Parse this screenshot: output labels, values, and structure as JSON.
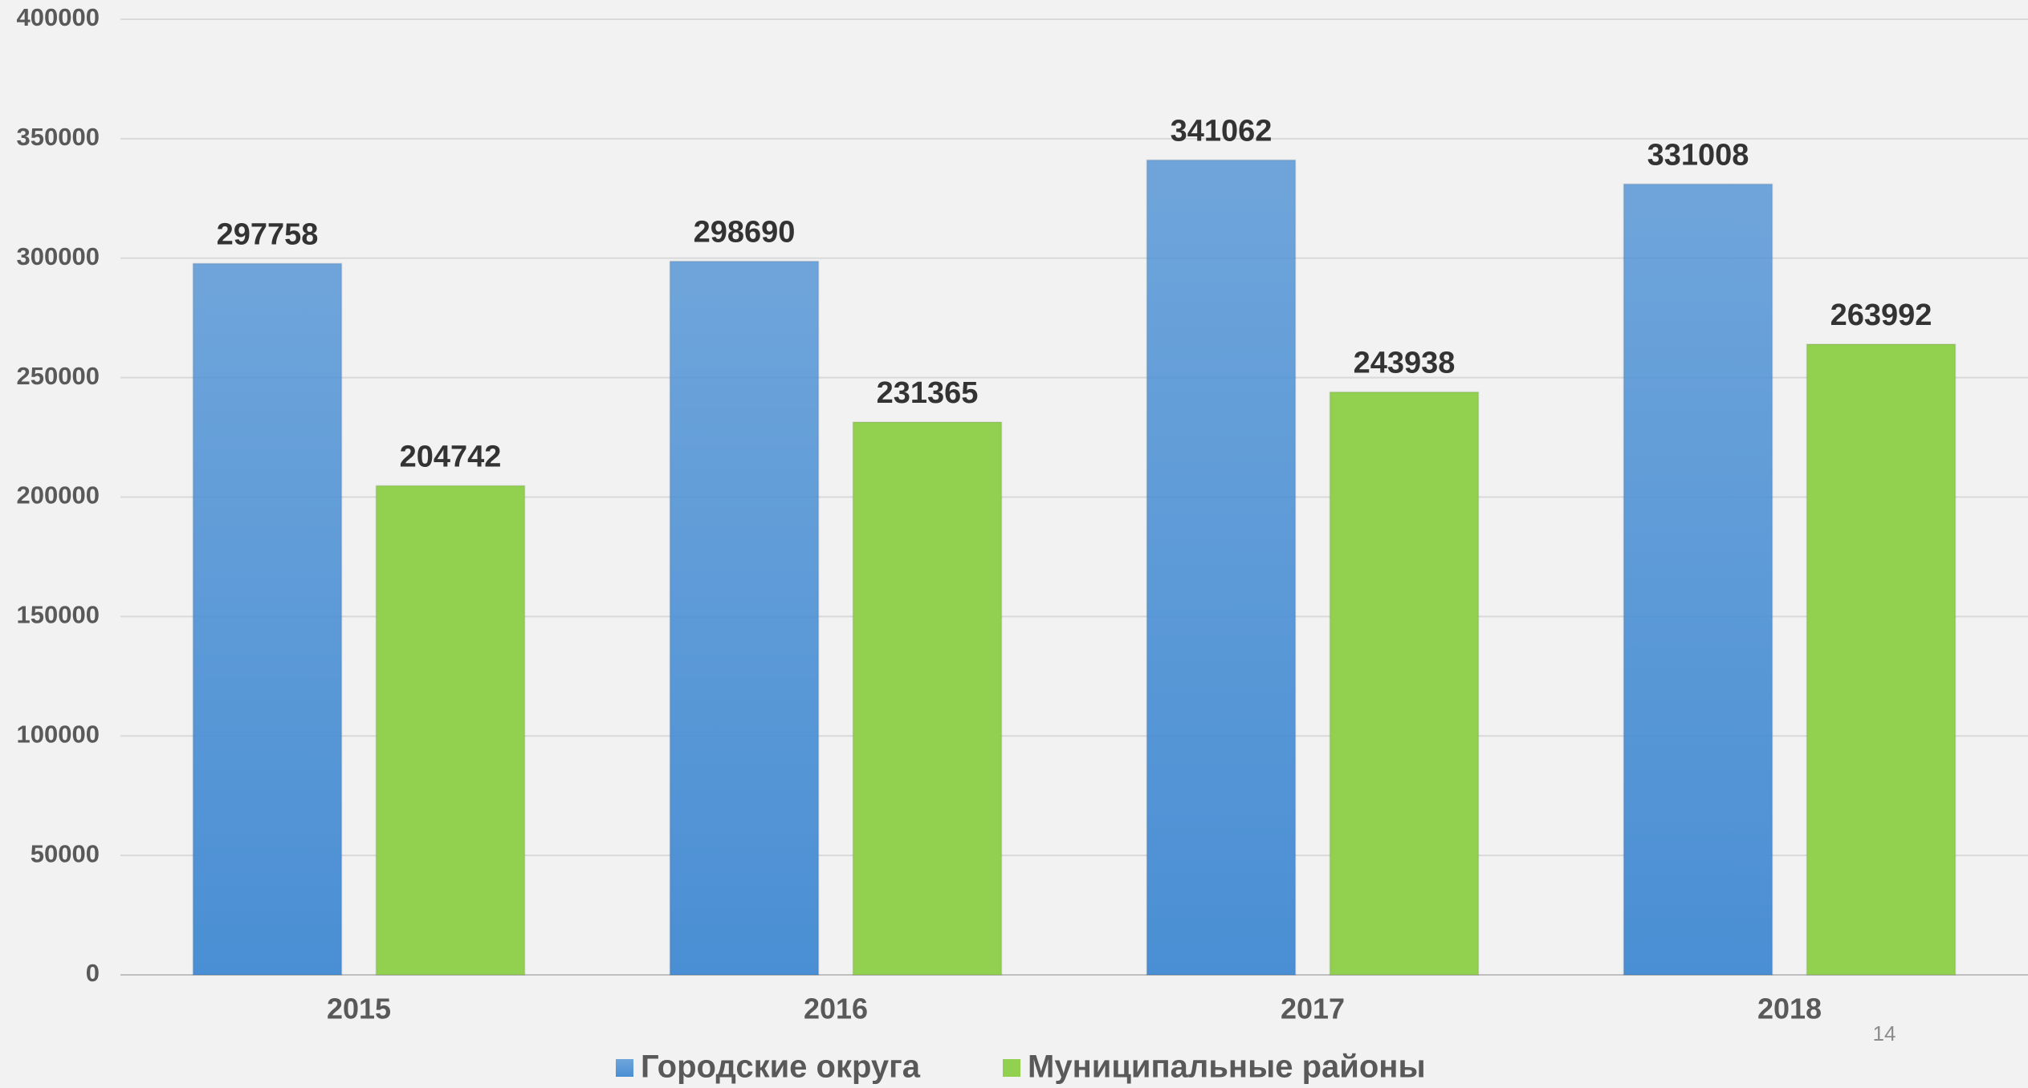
{
  "chart_data": {
    "type": "bar",
    "categories": [
      "2015",
      "2016",
      "2017",
      "2018"
    ],
    "series": [
      {
        "name": "Городские округа",
        "color": "#4a8fd4",
        "gradient": true,
        "values": [
          297758,
          298690,
          341062,
          331008
        ]
      },
      {
        "name": "Муниципальные районы",
        "color": "#92d050",
        "gradient": false,
        "values": [
          204742,
          231365,
          243938,
          263992
        ]
      }
    ],
    "ylim": [
      0,
      400000
    ],
    "yticks": [
      0,
      50000,
      100000,
      150000,
      200000,
      250000,
      300000,
      350000,
      400000
    ],
    "grid": true,
    "legend": "bottom"
  },
  "page_number": "14"
}
